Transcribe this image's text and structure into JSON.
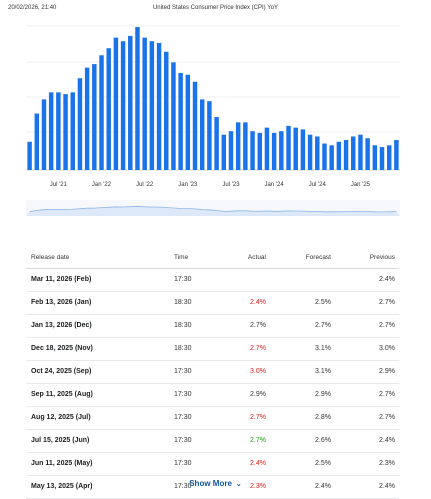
{
  "header": {
    "timestamp": "20/02/2026, 21:40",
    "title": "United States Consumer Price Index (CPI) YoY"
  },
  "colors": {
    "bar": "#1a73e8",
    "actual_up": "#d91e18",
    "actual_down": "#0ea600"
  },
  "chart_data": {
    "type": "bar",
    "title": "",
    "x_tick_labels": [
      "Jul '21",
      "Jan '22",
      "Jul '22",
      "Jan '23",
      "Jul '23",
      "Jan '24",
      "Jul '24",
      "Jan '25"
    ],
    "x": [
      "Mar '21",
      "Apr '21",
      "May '21",
      "Jun '21",
      "Jul '21",
      "Aug '21",
      "Sep '21",
      "Oct '21",
      "Nov '21",
      "Dec '21",
      "Jan '22",
      "Feb '22",
      "Mar '22",
      "Apr '22",
      "May '22",
      "Jun '22",
      "Jul '22",
      "Aug '22",
      "Sep '22",
      "Oct '22",
      "Nov '22",
      "Dec '22",
      "Jan '23",
      "Feb '23",
      "Mar '23",
      "Apr '23",
      "May '23",
      "Jun '23",
      "Jul '23",
      "Aug '23",
      "Sep '23",
      "Oct '23",
      "Nov '23",
      "Dec '23",
      "Jan '24",
      "Feb '24",
      "Mar '24",
      "Apr '24",
      "May '24",
      "Jun '24",
      "Jul '24",
      "Aug '24",
      "Sep '24",
      "Oct '24",
      "Nov '24",
      "Dec '24",
      "Jan '25",
      "Feb '25",
      "Mar '25",
      "Apr '25",
      "May '25",
      "Jun '25"
    ],
    "values": [
      2.6,
      4.2,
      5.0,
      5.4,
      5.4,
      5.3,
      5.4,
      6.2,
      6.8,
      7.0,
      7.5,
      7.9,
      8.5,
      8.3,
      8.6,
      9.1,
      8.5,
      8.3,
      8.2,
      7.7,
      7.1,
      6.5,
      6.4,
      6.0,
      5.0,
      4.9,
      4.0,
      3.0,
      3.2,
      3.7,
      3.7,
      3.2,
      3.1,
      3.4,
      3.1,
      3.2,
      3.5,
      3.4,
      3.3,
      3.0,
      2.9,
      2.5,
      2.4,
      2.6,
      2.7,
      2.9,
      3.0,
      2.8,
      2.4,
      2.3,
      2.4,
      2.7
    ],
    "ylim": [
      1.0,
      9.5
    ],
    "grid": true,
    "legend": "none"
  },
  "table": {
    "headers": {
      "date": "Release date",
      "time": "Time",
      "actual": "Actual",
      "forecast": "Forecast",
      "previous": "Previous"
    },
    "rows": [
      {
        "date": "Mar 11, 2026 (Feb)",
        "time": "17:30",
        "actual": "",
        "forecast": "",
        "previous": "2.4%",
        "trend": "neutral"
      },
      {
        "date": "Feb 13, 2026 (Jan)",
        "time": "18:30",
        "actual": "2.4%",
        "forecast": "2.5%",
        "previous": "2.7%",
        "trend": "red"
      },
      {
        "date": "Jan 13, 2026 (Dec)",
        "time": "18:30",
        "actual": "2.7%",
        "forecast": "2.7%",
        "previous": "2.7%",
        "trend": "neutral"
      },
      {
        "date": "Dec 18, 2025 (Nov)",
        "time": "18:30",
        "actual": "2.7%",
        "forecast": "3.1%",
        "previous": "3.0%",
        "trend": "red"
      },
      {
        "date": "Oct 24, 2025 (Sep)",
        "time": "17:30",
        "actual": "3.0%",
        "forecast": "3.1%",
        "previous": "2.9%",
        "trend": "red"
      },
      {
        "date": "Sep 11, 2025 (Aug)",
        "time": "17:30",
        "actual": "2.9%",
        "forecast": "2.9%",
        "previous": "2.7%",
        "trend": "neutral"
      },
      {
        "date": "Aug 12, 2025 (Jul)",
        "time": "17:30",
        "actual": "2.7%",
        "forecast": "2.8%",
        "previous": "2.7%",
        "trend": "red"
      },
      {
        "date": "Jul 15, 2025 (Jun)",
        "time": "17:30",
        "actual": "2.7%",
        "forecast": "2.6%",
        "previous": "2.4%",
        "trend": "green"
      },
      {
        "date": "Jun 11, 2025 (May)",
        "time": "17:30",
        "actual": "2.4%",
        "forecast": "2.5%",
        "previous": "2.3%",
        "trend": "red"
      },
      {
        "date": "May 13, 2025 (Apr)",
        "time": "17:30",
        "actual": "2.3%",
        "forecast": "2.4%",
        "previous": "2.4%",
        "trend": "red"
      }
    ]
  },
  "show_more": {
    "label": "Show More",
    "icon": "chevron-down-icon"
  }
}
